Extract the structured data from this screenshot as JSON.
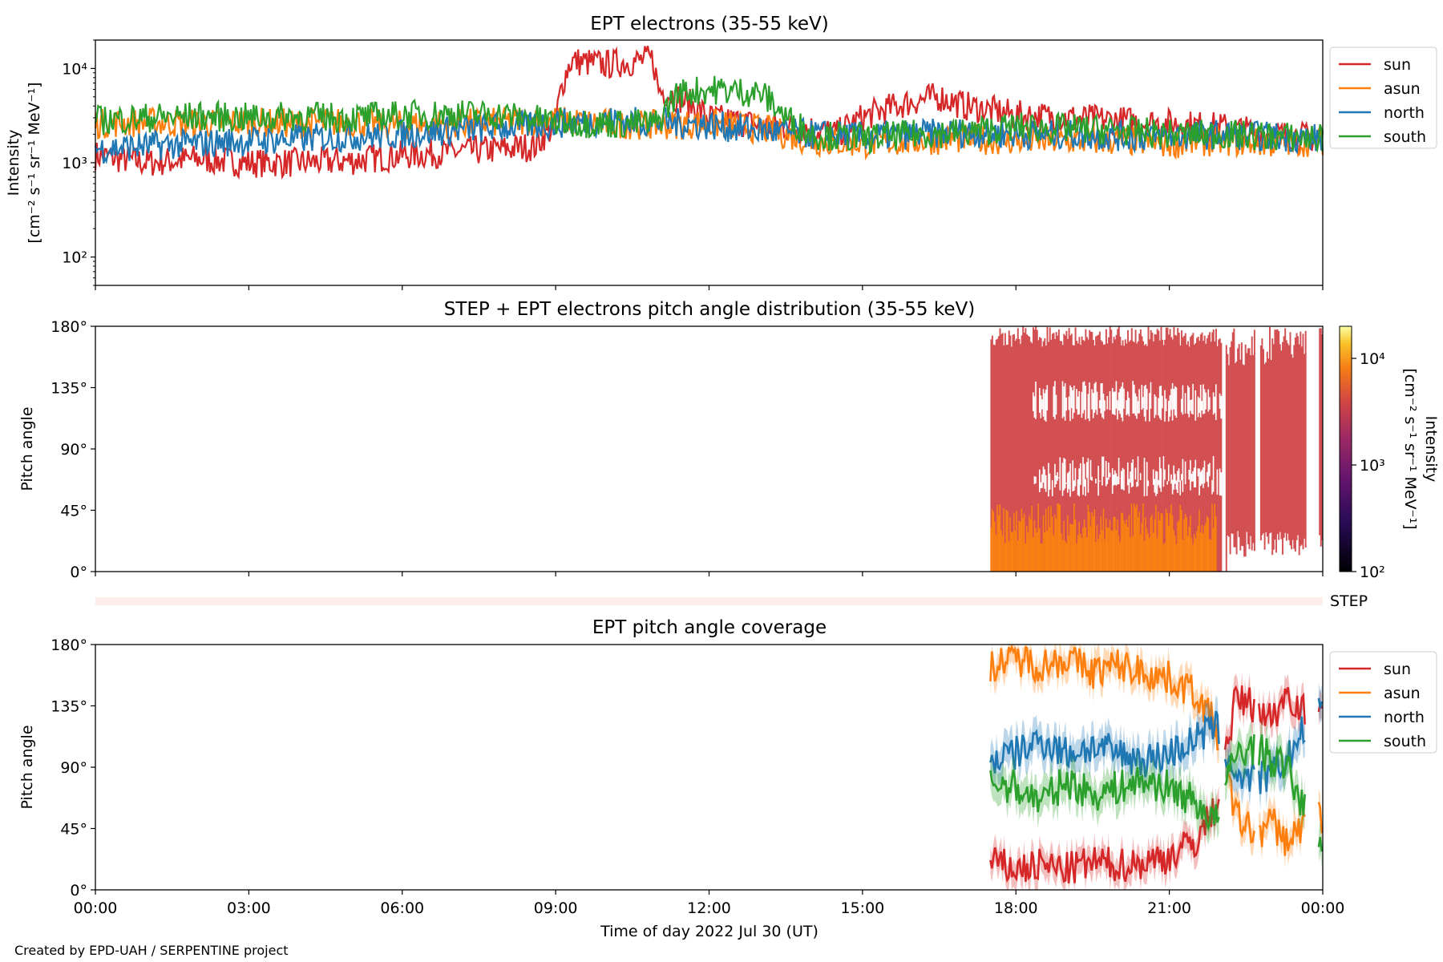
{
  "credit": "Created by EPD-UAH / SERPENTINE project",
  "colors": {
    "sun": "#d62728",
    "asun": "#ff7f0e",
    "north": "#1f77b4",
    "south": "#2ca02c",
    "step_bar": "#fdeee9"
  },
  "chart_data": [
    {
      "type": "line",
      "title": "EPT electrons (35-55 keV)",
      "ylabel": [
        "Intensity",
        "[cm⁻² s⁻¹ sr⁻¹ MeV⁻¹]"
      ],
      "yscale": "log",
      "ylim": [
        50,
        20000
      ],
      "yticks": [
        {
          "value": 100,
          "label": "10²"
        },
        {
          "value": 1000,
          "label": "10³"
        },
        {
          "value": 10000,
          "label": "10⁴"
        }
      ],
      "xlim": [
        "00:00",
        "24:00"
      ],
      "legend_position": "outside-right",
      "series": [
        {
          "name": "sun",
          "color": "#d62728",
          "x_hours": [
            0,
            1,
            2,
            3,
            4,
            5,
            6,
            7,
            8,
            8.6,
            9.0,
            9.3,
            10,
            10.9,
            11.0,
            11.7,
            12,
            13,
            14,
            14.5,
            15,
            16,
            16.5,
            17,
            18,
            19,
            20,
            21,
            22,
            23,
            24
          ],
          "values": [
            1200,
            1000,
            1100,
            1000,
            1000,
            1050,
            1200,
            1300,
            1400,
            1500,
            2500,
            12000,
            11000,
            12500,
            6000,
            4000,
            3000,
            2500,
            2300,
            2000,
            3000,
            4500,
            5000,
            4000,
            3200,
            3000,
            2800,
            2600,
            2400,
            2000,
            1800
          ]
        },
        {
          "name": "asun",
          "color": "#ff7f0e",
          "x_hours": [
            0,
            1,
            2,
            3,
            4,
            5,
            6,
            7,
            8,
            9,
            10,
            11,
            12,
            13,
            14,
            15,
            16,
            17,
            18,
            19,
            20,
            21,
            22,
            23,
            24
          ],
          "values": [
            2600,
            2700,
            2600,
            2700,
            2600,
            2700,
            2500,
            2600,
            2700,
            2800,
            2600,
            2500,
            2600,
            2300,
            1700,
            1600,
            1700,
            1800,
            1700,
            1700,
            1700,
            1600,
            1700,
            1600,
            1700
          ]
        },
        {
          "name": "north",
          "color": "#1f77b4",
          "x_hours": [
            0,
            1,
            2,
            3,
            4,
            5,
            6,
            7,
            8,
            9,
            10,
            11,
            12,
            13,
            14,
            15,
            16,
            17,
            18,
            19,
            20,
            21,
            22,
            23,
            24
          ],
          "values": [
            1400,
            1500,
            1600,
            1700,
            1800,
            1900,
            2000,
            2200,
            2400,
            2600,
            2800,
            2700,
            2500,
            2200,
            2000,
            1900,
            2000,
            2100,
            2000,
            2000,
            1900,
            1900,
            2000,
            1900,
            1800
          ]
        },
        {
          "name": "south",
          "color": "#2ca02c",
          "x_hours": [
            0,
            1,
            2,
            3,
            4,
            5,
            6,
            7,
            8,
            9,
            10,
            11,
            11.4,
            12,
            13,
            13.5,
            14,
            15,
            16,
            17,
            18,
            19,
            20,
            21,
            22,
            23,
            24
          ],
          "values": [
            2800,
            3000,
            3100,
            3000,
            3100,
            3000,
            3200,
            3300,
            3200,
            2700,
            2600,
            2600,
            5500,
            6000,
            5500,
            3000,
            2000,
            1800,
            2000,
            2100,
            2400,
            2300,
            2200,
            2000,
            2000,
            1900,
            1800
          ]
        }
      ]
    },
    {
      "type": "heatmap",
      "title": "STEP + EPT electrons pitch angle distribution (35-55 keV)",
      "ylabel": "Pitch angle",
      "ylim": [
        0,
        180
      ],
      "yticks": [
        "0°",
        "45°",
        "90°",
        "135°",
        "180°"
      ],
      "colorbar": {
        "label": [
          "Intensity",
          "[cm⁻² s⁻¹ sr⁻¹ MeV⁻¹]"
        ],
        "scale": "log",
        "range": [
          100,
          20000
        ],
        "ticks": [
          {
            "value": 100,
            "label": "10²"
          },
          {
            "value": 1000,
            "label": "10³"
          },
          {
            "value": 10000,
            "label": "10⁴"
          }
        ]
      },
      "coverage_start": "17:30",
      "coverage_end": "24:00",
      "gaps": [
        [
          "22:00",
          "22:05"
        ],
        [
          "22:40",
          "22:45"
        ],
        [
          "23:40",
          "23:55"
        ]
      ],
      "level_low_pitch_angle": 2500,
      "level_high_pitch_angle": 1800,
      "step_label": "STEP"
    },
    {
      "type": "line",
      "title": "EPT pitch angle coverage",
      "ylabel": "Pitch angle",
      "xlabel": "Time of day 2022 Jul 30 (UT)",
      "ylim": [
        0,
        180
      ],
      "yticks": [
        "0°",
        "45°",
        "90°",
        "135°",
        "180°"
      ],
      "xticks": [
        "00:00",
        "03:00",
        "06:00",
        "09:00",
        "12:00",
        "15:00",
        "18:00",
        "21:00",
        "00:00"
      ],
      "legend_position": "outside-right",
      "series": [
        {
          "name": "sun",
          "color": "#d62728",
          "x_hours": [
            17.5,
            18,
            18.5,
            19,
            19.5,
            20,
            20.5,
            21,
            21.5,
            21.9,
            22.3,
            22.7,
            23.0,
            23.3,
            23.9,
            24.0
          ],
          "values": [
            20,
            15,
            18,
            15,
            20,
            18,
            20,
            25,
            35,
            60,
            140,
            135,
            125,
            145,
            120,
            130
          ],
          "band": 10
        },
        {
          "name": "asun",
          "color": "#ff7f0e",
          "x_hours": [
            17.5,
            18,
            18.5,
            19,
            19.5,
            20,
            20.5,
            21,
            21.5,
            21.9,
            22.3,
            22.7,
            23.0,
            23.3,
            23.9,
            24.0
          ],
          "values": [
            165,
            170,
            165,
            170,
            160,
            165,
            160,
            155,
            145,
            120,
            55,
            40,
            50,
            35,
            60,
            45
          ],
          "band": 10
        },
        {
          "name": "north",
          "color": "#1f77b4",
          "x_hours": [
            17.5,
            18,
            18.5,
            19,
            19.5,
            20,
            20.5,
            21,
            21.5,
            21.9,
            22.3,
            22.7,
            23.0,
            23.3,
            23.9,
            24.0
          ],
          "values": [
            95,
            100,
            110,
            100,
            105,
            100,
            95,
            100,
            110,
            120,
            85,
            80,
            85,
            95,
            135,
            125
          ],
          "band": 12
        },
        {
          "name": "south",
          "color": "#2ca02c",
          "x_hours": [
            17.5,
            18,
            18.5,
            19,
            19.5,
            20,
            20.5,
            21,
            21.5,
            21.9,
            22.3,
            22.7,
            23.0,
            23.3,
            23.9,
            24.0
          ],
          "values": [
            80,
            75,
            65,
            80,
            70,
            75,
            80,
            75,
            65,
            50,
            100,
            105,
            95,
            90,
            35,
            40
          ],
          "band": 12
        }
      ]
    }
  ]
}
